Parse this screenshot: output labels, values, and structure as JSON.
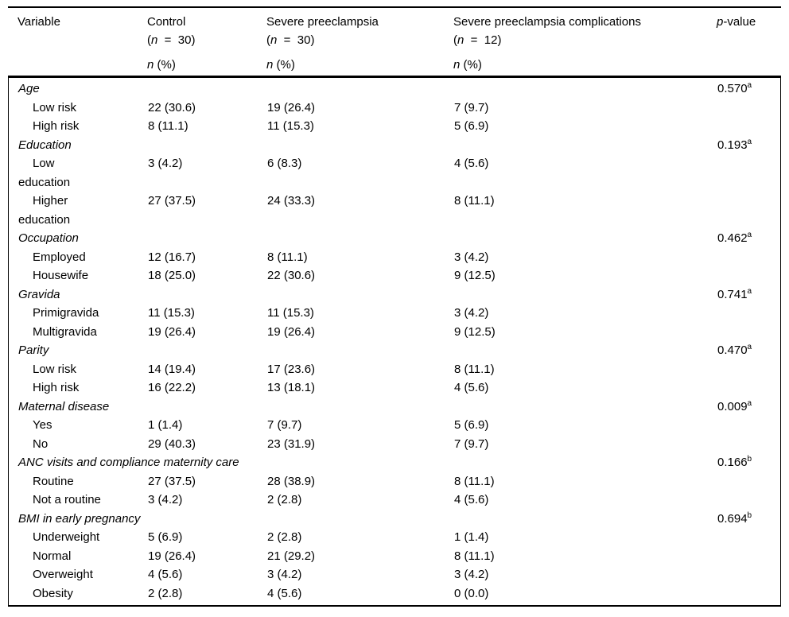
{
  "table": {
    "header": {
      "variable": "Variable",
      "n_symbol": "n",
      "pct_suffix": " (%)",
      "p_symbol": "p",
      "p_suffix": "-value",
      "groups": [
        {
          "name": "Control",
          "pre": "(",
          "mid": "  =  ",
          "post": "30)"
        },
        {
          "name": "Severe preeclampsia",
          "pre": "(",
          "mid": "  =  ",
          "post": "30)"
        },
        {
          "name": "Severe preeclampsia complications",
          "pre": "(",
          "mid": "  =  ",
          "post": "12)"
        }
      ]
    },
    "rows": [
      {
        "type": "section",
        "label": "Age",
        "p": "0.570",
        "sup": "a"
      },
      {
        "type": "item",
        "label": "Low risk",
        "c1": "22 (30.6)",
        "c2": "19 (26.4)",
        "c3": "7 (9.7)"
      },
      {
        "type": "item",
        "label": "High risk",
        "c1": "8 (11.1)",
        "c2": "11 (15.3)",
        "c3": "5 (6.9)"
      },
      {
        "type": "section",
        "label": "Education",
        "p": "0.193",
        "sup": "a"
      },
      {
        "type": "item",
        "label": "Low\neducation",
        "c1": "3 (4.2)",
        "c2": "6 (8.3)",
        "c3": "4 (5.6)"
      },
      {
        "type": "item",
        "label": "Higher\neducation",
        "c1": "27 (37.5)",
        "c2": "24 (33.3)",
        "c3": "8 (11.1)"
      },
      {
        "type": "section",
        "label": "Occupation",
        "p": "0.462",
        "sup": "a"
      },
      {
        "type": "item",
        "label": "Employed",
        "c1": "12 (16.7)",
        "c2": "8 (11.1)",
        "c3": "3 (4.2)"
      },
      {
        "type": "item",
        "label": "Housewife",
        "c1": "18 (25.0)",
        "c2": "22 (30.6)",
        "c3": "9 (12.5)"
      },
      {
        "type": "section",
        "label": "Gravida",
        "p": "0.741",
        "sup": "a"
      },
      {
        "type": "item",
        "label": "Primigravida",
        "c1": "11 (15.3)",
        "c2": "11 (15.3)",
        "c3": "3 (4.2)"
      },
      {
        "type": "item",
        "label": "Multigravida",
        "c1": "19 (26.4)",
        "c2": "19 (26.4)",
        "c3": "9 (12.5)"
      },
      {
        "type": "section",
        "label": "Parity",
        "p": "0.470",
        "sup": "a"
      },
      {
        "type": "item",
        "label": "Low risk",
        "c1": "14 (19.4)",
        "c2": "17 (23.6)",
        "c3": "8 (11.1)"
      },
      {
        "type": "item",
        "label": "High risk",
        "c1": "16 (22.2)",
        "c2": "13 (18.1)",
        "c3": "4 (5.6)"
      },
      {
        "type": "section",
        "label": "Maternal disease",
        "p": "0.009",
        "sup": "a"
      },
      {
        "type": "item",
        "label": "Yes",
        "c1": "1 (1.4)",
        "c2": "7 (9.7)",
        "c3": "5 (6.9)"
      },
      {
        "type": "item",
        "label": "No",
        "c1": "29 (40.3)",
        "c2": "23 (31.9)",
        "c3": "7 (9.7)"
      },
      {
        "type": "section",
        "label": "ANC visits and compliance maternity care",
        "p": "0.166",
        "sup": "b"
      },
      {
        "type": "item",
        "label": "Routine",
        "c1": "27 (37.5)",
        "c2": "28 (38.9)",
        "c3": "8 (11.1)"
      },
      {
        "type": "item",
        "label": "Not a routine",
        "c1": "3 (4.2)",
        "c2": "2 (2.8)",
        "c3": "4 (5.6)"
      },
      {
        "type": "section",
        "label": "BMI in early pregnancy",
        "p": "0.694",
        "sup": "b"
      },
      {
        "type": "item",
        "label": "Underweight",
        "c1": "5 (6.9)",
        "c2": "2 (2.8)",
        "c3": "1 (1.4)"
      },
      {
        "type": "item",
        "label": "Normal",
        "c1": "19 (26.4)",
        "c2": "21 (29.2)",
        "c3": "8 (11.1)"
      },
      {
        "type": "item",
        "label": "Overweight",
        "c1": "4 (5.6)",
        "c2": "3 (4.2)",
        "c3": "3 (4.2)"
      },
      {
        "type": "item",
        "label": "Obesity",
        "c1": "2 (2.8)",
        "c2": "4 (5.6)",
        "c3": "0 (0.0)"
      }
    ]
  }
}
